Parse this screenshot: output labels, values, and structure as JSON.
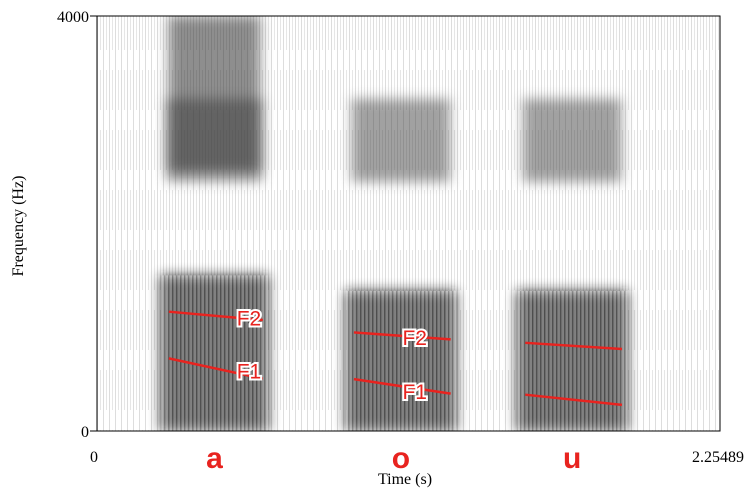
{
  "chart_data": {
    "type": "heatmap",
    "title": "",
    "xlabel": "Time (s)",
    "ylabel": "Frequency (Hz)",
    "xlim": [
      0,
      2.25489
    ],
    "ylim": [
      0,
      4000
    ],
    "x_tick_labels": [
      "0",
      "2.25489"
    ],
    "y_tick_labels": [
      "0",
      "4000"
    ],
    "vowels": [
      {
        "label": "a",
        "t_start": 0.23,
        "t_end": 0.62,
        "F1_hz": 700,
        "F2_hz": 1150
      },
      {
        "label": "o",
        "t_start": 0.9,
        "t_end": 1.3,
        "F1_hz": 500,
        "F2_hz": 950
      },
      {
        "label": "u",
        "t_start": 1.52,
        "t_end": 1.92,
        "F1_hz": 350,
        "F2_hz": 850
      }
    ],
    "formant_annotations": [
      {
        "text": "F2",
        "time": 0.55,
        "freq": 1070
      },
      {
        "text": "F1",
        "time": 0.55,
        "freq": 560
      },
      {
        "text": "F2",
        "time": 1.15,
        "freq": 880
      },
      {
        "text": "F1",
        "time": 1.15,
        "freq": 360
      }
    ],
    "annotation_color": "#e8231f"
  }
}
